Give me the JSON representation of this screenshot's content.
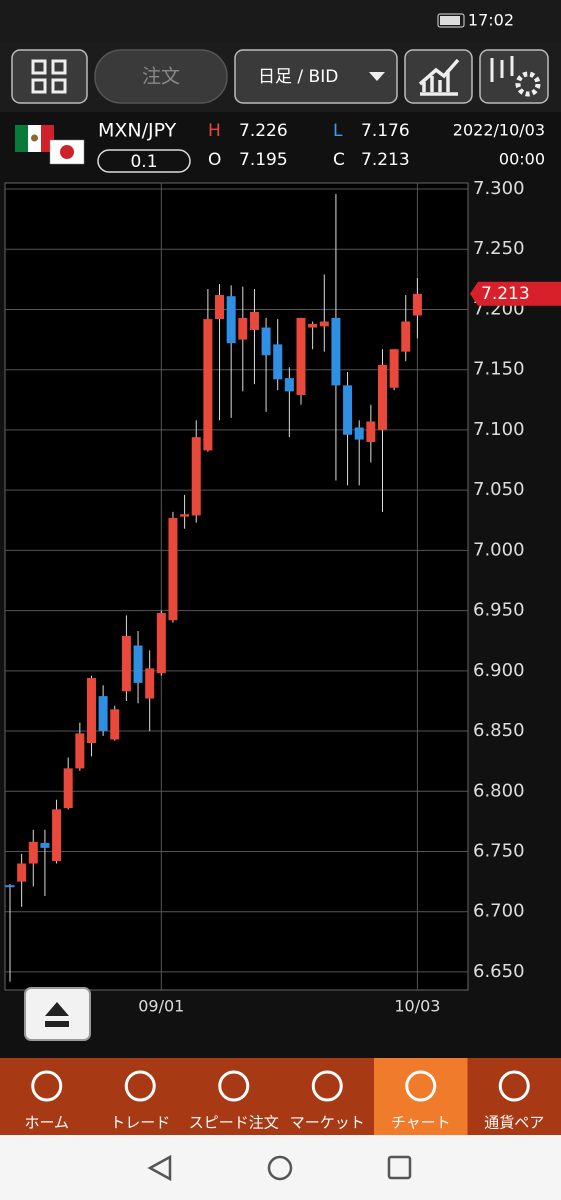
{
  "status_bar": {
    "time": "17:02"
  },
  "toolbar": {
    "order_button": "注文",
    "timeframe": "日足 / BID"
  },
  "instrument": {
    "symbol": "MXN/JPY",
    "lot": 0.1,
    "labels": {
      "high": "H",
      "low": "L",
      "open": "O",
      "close": "C"
    },
    "date": "2022/10/03",
    "time": "00:00"
  },
  "chart_data": {
    "type": "candlestick",
    "categories": [
      null,
      null,
      null,
      null,
      null,
      null,
      null,
      null,
      null,
      null,
      null,
      null,
      null,
      "09/01",
      null,
      null,
      null,
      null,
      null,
      null,
      null,
      null,
      null,
      null,
      null,
      null,
      null,
      null,
      null,
      null,
      null,
      null,
      null,
      null,
      null,
      "10/03"
    ],
    "open": [
      6.722,
      6.725,
      6.74,
      6.757,
      6.742,
      6.786,
      6.819,
      6.84,
      6.879,
      6.843,
      6.883,
      6.921,
      6.877,
      6.898,
      6.942,
      7.028,
      7.029,
      7.083,
      7.192,
      7.211,
      7.175,
      7.183,
      7.185,
      7.171,
      7.143,
      7.129,
      7.185,
      7.186,
      7.193,
      7.137,
      7.102,
      7.09,
      7.1,
      7.135,
      7.165,
      7.195
    ],
    "high": [
      6.723,
      6.748,
      6.768,
      6.768,
      6.793,
      6.828,
      6.857,
      6.896,
      6.888,
      6.871,
      6.946,
      6.933,
      6.917,
      6.95,
      7.032,
      7.046,
      7.108,
      7.217,
      7.221,
      7.22,
      7.219,
      7.217,
      7.193,
      7.192,
      7.152,
      7.193,
      7.19,
      7.229,
      7.296,
      7.148,
      7.108,
      7.121,
      7.167,
      7.167,
      7.212,
      7.226
    ],
    "low": [
      6.642,
      6.704,
      6.721,
      6.713,
      6.74,
      6.785,
      6.817,
      6.829,
      6.846,
      6.842,
      6.875,
      6.873,
      6.85,
      6.896,
      6.94,
      7.018,
      7.023,
      7.082,
      7.108,
      7.11,
      7.132,
      7.138,
      7.115,
      7.133,
      7.094,
      7.121,
      7.167,
      7.165,
      7.058,
      7.054,
      7.054,
      7.073,
      7.032,
      7.133,
      7.157,
      7.176
    ],
    "close": [
      6.721,
      6.74,
      6.758,
      6.753,
      6.785,
      6.819,
      6.848,
      6.894,
      6.85,
      6.868,
      6.929,
      6.89,
      6.902,
      6.948,
      7.027,
      7.03,
      7.094,
      7.192,
      7.212,
      7.172,
      7.193,
      7.198,
      7.162,
      7.142,
      7.132,
      7.193,
      7.188,
      7.19,
      7.137,
      7.096,
      7.092,
      7.107,
      7.154,
      7.167,
      7.19,
      7.213
    ],
    "up_color": "#e8493a",
    "down_color": "#2f8fe3",
    "ylim": [
      6.635,
      7.305
    ],
    "yticks": [
      {
        "value": 6.65,
        "label": "6.650"
      },
      {
        "value": 6.7,
        "label": "6.700"
      },
      {
        "value": 6.75,
        "label": "6.750"
      },
      {
        "value": 6.8,
        "label": "6.800"
      },
      {
        "value": 6.85,
        "label": "6.850"
      },
      {
        "value": 6.9,
        "label": "6.900"
      },
      {
        "value": 6.95,
        "label": "6.950"
      },
      {
        "value": 7.0,
        "label": "7.000"
      },
      {
        "value": 7.05,
        "label": "7.050"
      },
      {
        "value": 7.1,
        "label": "7.100"
      },
      {
        "value": 7.15,
        "label": "7.150"
      },
      {
        "value": 7.2,
        "label": "7.200"
      },
      {
        "value": 7.25,
        "label": "7.250"
      },
      {
        "value": 7.3,
        "label": "7.300"
      }
    ],
    "grid": true
  },
  "nav": {
    "items": [
      "ホーム",
      "トレード",
      "スピード注文",
      "マーケット",
      "チャート",
      "通貨ペア"
    ],
    "active": 4
  }
}
